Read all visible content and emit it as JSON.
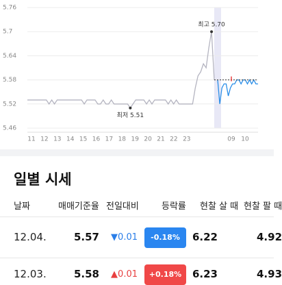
{
  "chart_data": {
    "type": "line",
    "ylim": [
      5.46,
      5.76
    ],
    "yticks": [
      5.46,
      5.52,
      5.58,
      5.64,
      5.7,
      5.76
    ],
    "x_labels": [
      "11",
      "12",
      "13",
      "14",
      "15",
      "16",
      "17",
      "18",
      "19",
      "20",
      "21",
      "22",
      "23",
      "09",
      "10"
    ],
    "grid": true,
    "reference": 5.58,
    "series": [
      {
        "color": "#b4b4c0",
        "values": [
          5.53,
          5.53,
          5.53,
          5.53,
          5.53,
          5.53,
          5.53,
          5.53,
          5.52,
          5.53,
          5.52,
          5.53,
          5.53,
          5.53,
          5.53,
          5.53,
          5.53,
          5.53,
          5.53,
          5.53,
          5.53,
          5.52,
          5.53,
          5.53,
          5.53,
          5.53,
          5.52,
          5.52,
          5.53,
          5.52,
          5.52,
          5.53,
          5.52,
          5.52,
          5.52,
          5.52,
          5.52,
          5.52,
          5.51,
          5.52,
          5.53,
          5.53,
          5.53,
          5.53,
          5.52,
          5.53,
          5.52,
          5.53,
          5.53,
          5.53,
          5.53,
          5.53,
          5.52,
          5.53,
          5.52,
          5.53,
          5.52,
          5.52,
          5.52,
          5.52,
          5.52,
          5.52,
          5.56,
          5.59,
          5.6,
          5.62,
          5.61,
          5.66,
          5.7,
          5.58
        ]
      },
      {
        "color": "#2a8ee8",
        "values": [
          5.58,
          5.52,
          5.56,
          5.57,
          5.57,
          5.54,
          5.56,
          5.57,
          5.57,
          5.58,
          5.58,
          5.57,
          5.58,
          5.58,
          5.57,
          5.58,
          5.57,
          5.58,
          5.57,
          5.57
        ]
      }
    ],
    "annotations": [
      {
        "text": "최고 5.70",
        "series": 0,
        "index": 68
      },
      {
        "text": "최저 5.51",
        "series": 0,
        "index": 38
      }
    ]
  },
  "section_title": "일별 시세",
  "table": {
    "header": [
      "날짜",
      "매매기준율",
      "전일대비",
      "등락률",
      "현찰 살 때",
      "현찰 팔 때"
    ],
    "rows": [
      [
        "12.04.",
        "5.57",
        "▼0.01",
        "-0.18%",
        "6.22",
        "4.92"
      ],
      [
        "12.03.",
        "5.58",
        "▲0.01",
        "+0.18%",
        "6.23",
        "4.93"
      ]
    ]
  }
}
